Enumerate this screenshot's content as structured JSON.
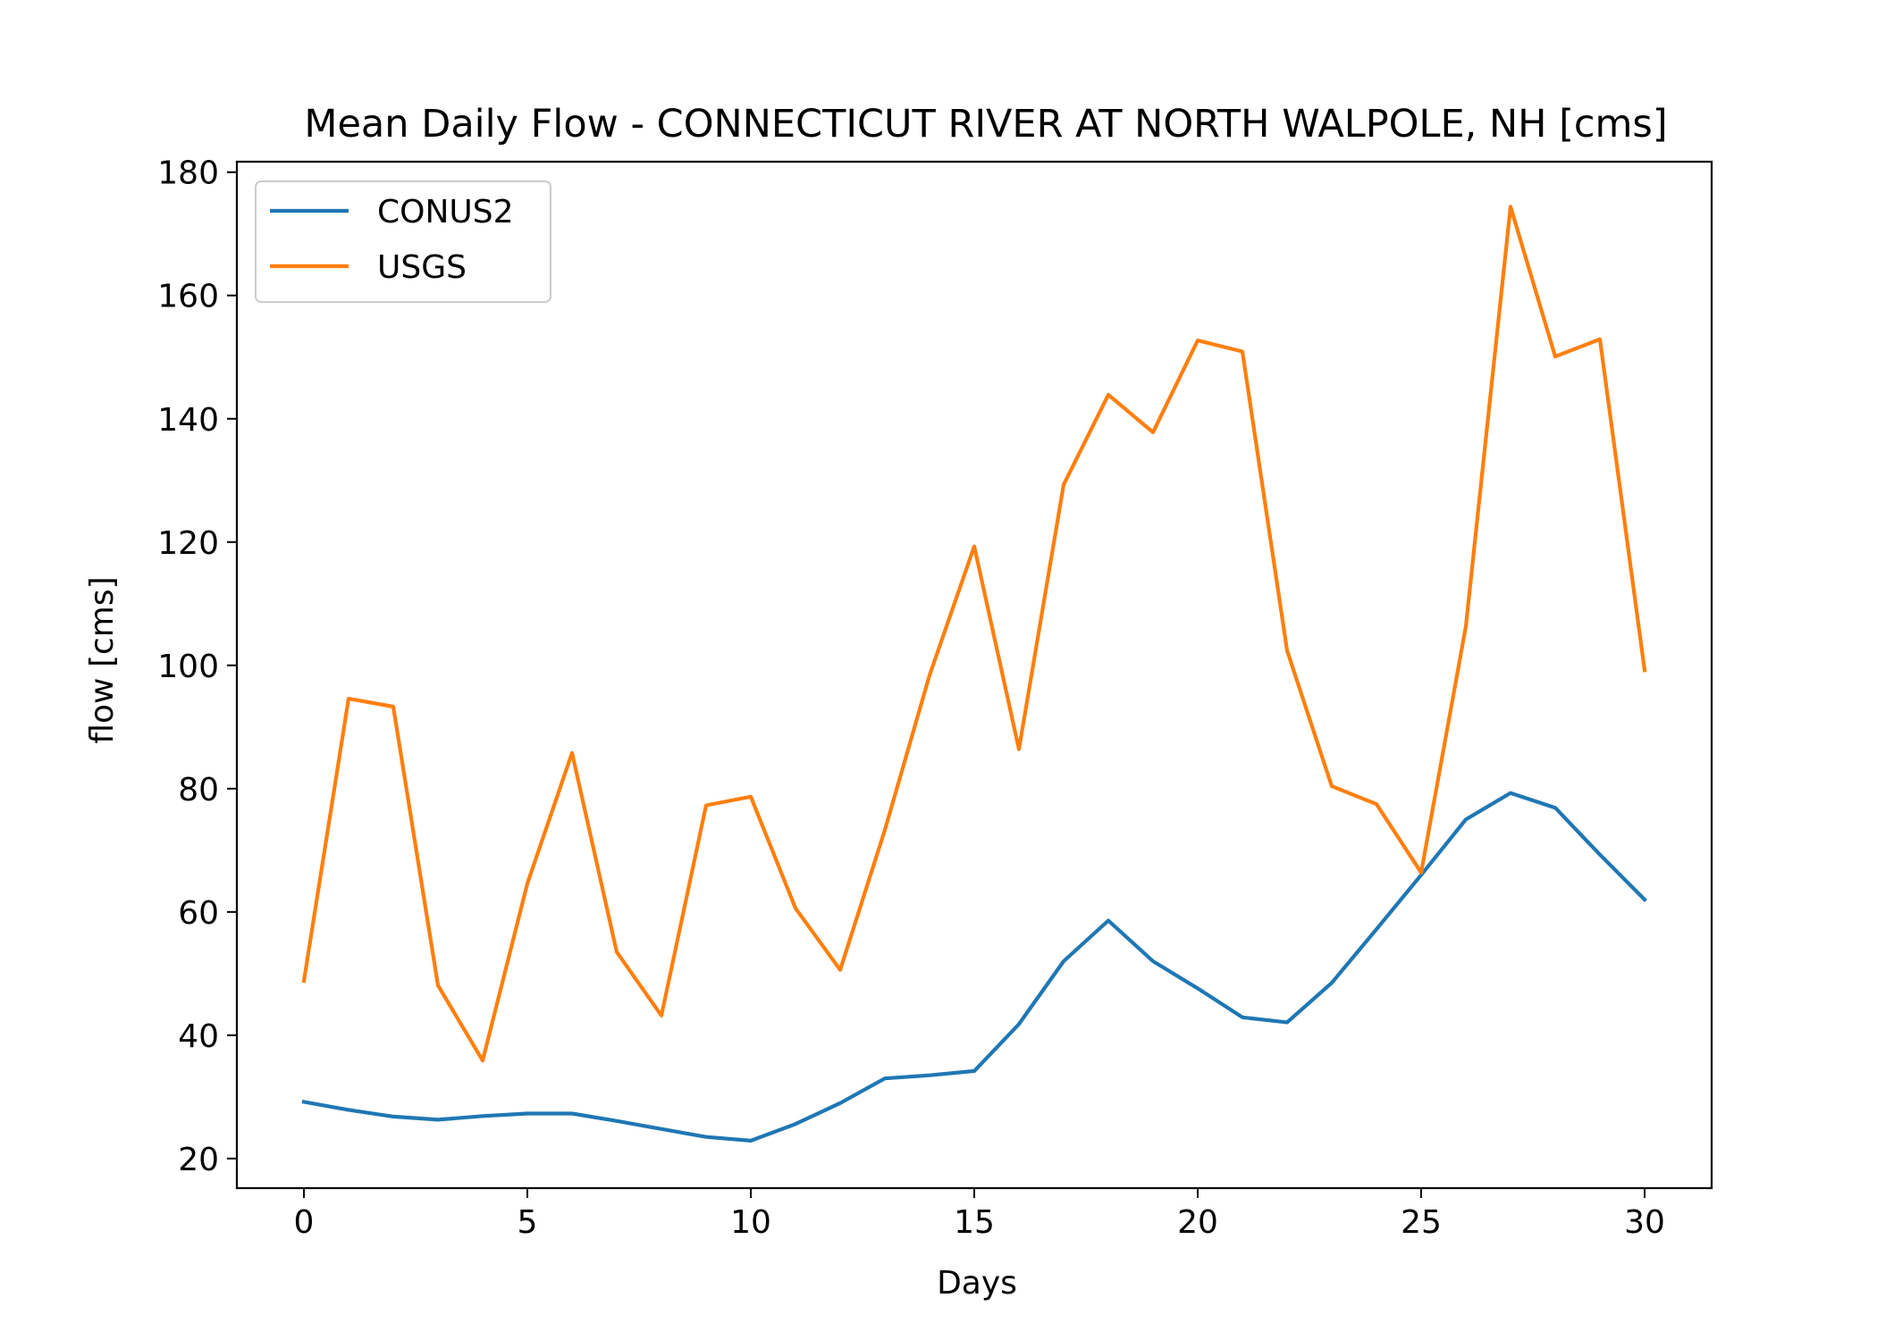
{
  "chart_data": {
    "type": "line",
    "title": "Mean Daily Flow - CONNECTICUT RIVER AT NORTH WALPOLE, NH [cms]",
    "xlabel": "Days",
    "ylabel": "flow [cms]",
    "xlim": [
      -1.5,
      31.5
    ],
    "ylim": [
      15.2,
      181.7
    ],
    "xticks": [
      0,
      5,
      10,
      15,
      20,
      25,
      30
    ],
    "yticks": [
      20,
      40,
      60,
      80,
      100,
      120,
      140,
      160,
      180
    ],
    "grid": false,
    "legend_position": "top-left",
    "x": [
      0,
      1,
      2,
      3,
      4,
      5,
      6,
      7,
      8,
      9,
      10,
      11,
      12,
      13,
      14,
      15,
      16,
      17,
      18,
      19,
      20,
      21,
      22,
      23,
      24,
      25,
      26,
      27,
      28,
      29,
      30
    ],
    "series": [
      {
        "name": "CONUS2",
        "color": "#1f77b4",
        "values": [
          29.2,
          27.9,
          26.8,
          26.3,
          26.9,
          27.3,
          27.3,
          26.1,
          24.8,
          23.5,
          22.9,
          25.6,
          29.0,
          33.0,
          33.5,
          34.2,
          41.8,
          52.0,
          58.6,
          52.0,
          47.6,
          42.9,
          42.1,
          48.5,
          57.2,
          66.0,
          75.0,
          79.3,
          76.9,
          69.3,
          62.0
        ]
      },
      {
        "name": "USGS",
        "color": "#ff7f0e",
        "values": [
          48.8,
          94.6,
          93.3,
          48.1,
          35.9,
          64.6,
          85.8,
          53.5,
          43.2,
          77.3,
          78.7,
          60.6,
          50.6,
          73.3,
          98.4,
          119.3,
          86.4,
          129.3,
          143.9,
          137.8,
          152.7,
          150.9,
          102.4,
          80.4,
          77.5,
          66.4,
          106.3,
          174.4,
          150.1,
          152.9,
          99.2
        ]
      }
    ]
  }
}
